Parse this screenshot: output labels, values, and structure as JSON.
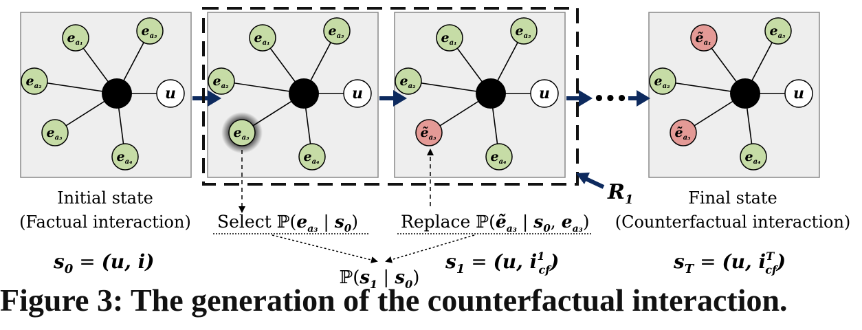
{
  "panels": [
    {
      "id": "s0",
      "center_node": "",
      "user_node": "u",
      "nodes": [
        {
          "id": "a1",
          "label": "e",
          "sub": "a₁",
          "tilde": false,
          "state": "factual"
        },
        {
          "id": "a5",
          "label": "e",
          "sub": "a₅",
          "tilde": false,
          "state": "factual"
        },
        {
          "id": "a2",
          "label": "e",
          "sub": "a₂",
          "tilde": false,
          "state": "factual"
        },
        {
          "id": "a3",
          "label": "e",
          "sub": "a₃",
          "tilde": false,
          "state": "factual"
        },
        {
          "id": "a4",
          "label": "e",
          "sub": "a₄",
          "tilde": false,
          "state": "factual"
        }
      ],
      "caption_line1": "Initial state",
      "caption_line2": "(Factual interaction)",
      "state_eq": {
        "lhs": "s",
        "lhs_sub": "0",
        "eq": " = ",
        "rhs": "(u, i)"
      }
    },
    {
      "id": "s0b",
      "center_node": "",
      "user_node": "u",
      "nodes": [
        {
          "id": "a1",
          "label": "e",
          "sub": "a₁",
          "tilde": false,
          "state": "factual"
        },
        {
          "id": "a5",
          "label": "e",
          "sub": "a₅",
          "tilde": false,
          "state": "factual"
        },
        {
          "id": "a2",
          "label": "e",
          "sub": "a₂",
          "tilde": false,
          "state": "factual"
        },
        {
          "id": "a3",
          "label": "e",
          "sub": "a₃",
          "tilde": false,
          "state": "selected"
        },
        {
          "id": "a4",
          "label": "e",
          "sub": "a₄",
          "tilde": false,
          "state": "factual"
        }
      ]
    },
    {
      "id": "s1",
      "center_node": "",
      "user_node": "u",
      "nodes": [
        {
          "id": "a1",
          "label": "e",
          "sub": "a₁",
          "tilde": false,
          "state": "factual"
        },
        {
          "id": "a5",
          "label": "e",
          "sub": "a₅",
          "tilde": false,
          "state": "factual"
        },
        {
          "id": "a2",
          "label": "e",
          "sub": "a₂",
          "tilde": false,
          "state": "factual"
        },
        {
          "id": "a3",
          "label": "e",
          "sub": "a₃",
          "tilde": true,
          "state": "counterfactual"
        },
        {
          "id": "a4",
          "label": "e",
          "sub": "a₄",
          "tilde": false,
          "state": "factual"
        }
      ],
      "state_eq": {
        "lhs": "s",
        "lhs_sub": "1",
        "eq": " = ",
        "rhs_prefix": "(u, ",
        "rhs_var": "i",
        "rhs_sup": "1",
        "rhs_sub": "cf",
        "rhs_suffix": ")"
      }
    },
    {
      "id": "sT",
      "center_node": "",
      "user_node": "u",
      "nodes": [
        {
          "id": "a1",
          "label": "e",
          "sub": "a₁",
          "tilde": true,
          "state": "counterfactual"
        },
        {
          "id": "a5",
          "label": "e",
          "sub": "a₅",
          "tilde": false,
          "state": "factual"
        },
        {
          "id": "a2",
          "label": "e",
          "sub": "a₂",
          "tilde": false,
          "state": "factual"
        },
        {
          "id": "a3",
          "label": "e",
          "sub": "a₃",
          "tilde": true,
          "state": "counterfactual"
        },
        {
          "id": "a4",
          "label": "e",
          "sub": "a₄",
          "tilde": false,
          "state": "factual"
        }
      ],
      "caption_line1": "Final state",
      "caption_line2": "(Counterfactual interaction)",
      "state_eq": {
        "lhs": "s",
        "lhs_sub": "T",
        "eq": " = ",
        "rhs_prefix": "(u, ",
        "rhs_var": "i",
        "rhs_sup": "T",
        "rhs_sub": "cf",
        "rhs_suffix": ")"
      }
    }
  ],
  "ellipsis": "•••",
  "region_label": {
    "main": "R",
    "sub": "1"
  },
  "select_label": {
    "word": "Select ",
    "prob": "ℙ(",
    "var": "e",
    "var_sub": "a₃",
    "bar": " | ",
    "cond": "s",
    "cond_sub": "0",
    "close": ")"
  },
  "replace_label": {
    "word": "Replace ",
    "prob": "ℙ(",
    "var": "ẽ",
    "var_sub": "a₃",
    "bar": " | ",
    "cond": "s",
    "cond_sub": "0",
    "comma": ", ",
    "cond2": "e",
    "cond2_sub": "a₃",
    "close": ")"
  },
  "transition_prob": {
    "prob": "ℙ(",
    "var": "s",
    "var_sub": "1",
    "bar": " | ",
    "cond": "s",
    "cond_sub": "0",
    "close": ")"
  },
  "colors": {
    "panel_fill": "#eeeeee",
    "panel_stroke": "#888888",
    "factual_node": "#c6dca6",
    "counterfactual_node": "#e49a96",
    "arrow": "#0d2a5e",
    "center_node": "#000000"
  },
  "caption": "Figure 3: The generation of the counterfactual interaction."
}
